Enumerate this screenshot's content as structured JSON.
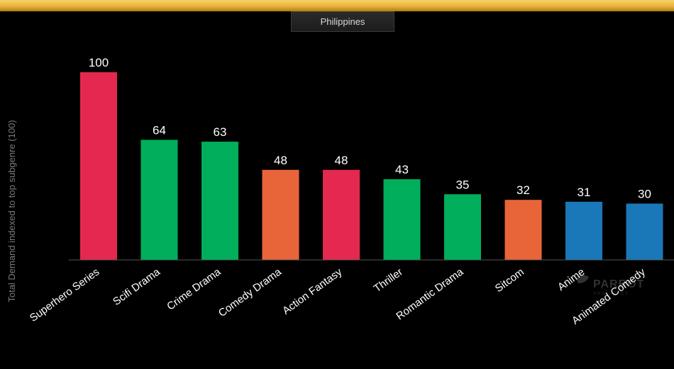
{
  "header": {
    "country": "Philippines"
  },
  "watermark": {
    "logo": "PARROT ANALYTICS"
  },
  "colors": {
    "background": "#000000",
    "band": "#e9b13a",
    "red": "#e5284f",
    "green": "#00ae5b",
    "orange": "#e86539",
    "blue": "#1b78b8"
  },
  "chart_data": {
    "type": "bar",
    "ylabel": "Total Demand indexed to top subgenre (100)",
    "xlabel": "",
    "ylim": [
      0,
      100
    ],
    "grid": false,
    "categories": [
      "Superhero Series",
      "Scifi Drama",
      "Crime Drama",
      "Comedy Drama",
      "Action Fantasy",
      "Thriller",
      "Romantic Drama",
      "Sitcom",
      "Anime",
      "Animated Comedy"
    ],
    "values": [
      100,
      64,
      63,
      48,
      48,
      43,
      35,
      32,
      31,
      30
    ],
    "bar_colors": [
      "#e5284f",
      "#00ae5b",
      "#00ae5b",
      "#e86539",
      "#e5284f",
      "#00ae5b",
      "#00ae5b",
      "#e86539",
      "#1b78b8",
      "#1b78b8"
    ]
  }
}
